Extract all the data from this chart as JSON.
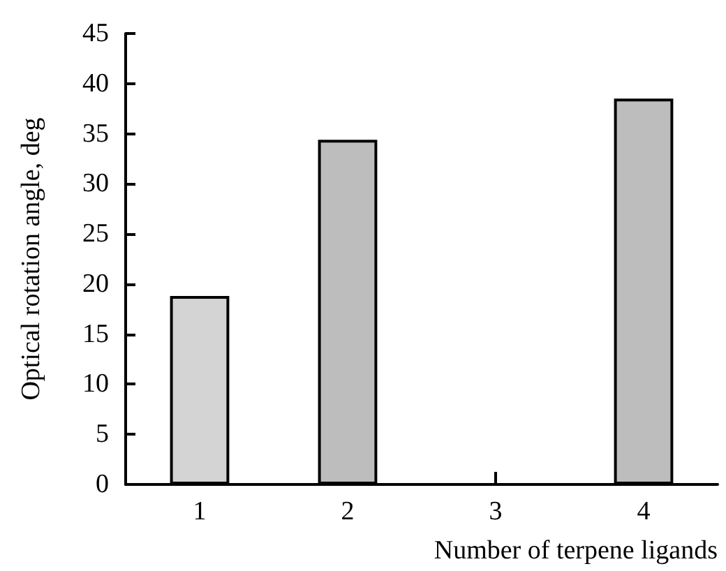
{
  "chart_data": {
    "type": "bar",
    "xlabel": "Number of terpene ligands",
    "ylabel": "Optical rotation angle, deg",
    "categories": [
      "1",
      "2",
      "3",
      "4"
    ],
    "values": [
      18.8,
      34.4,
      null,
      38.5
    ],
    "colors": [
      "#d4d4d4",
      "#bdbdbd",
      "#bdbdbd",
      "#bdbdbd"
    ],
    "ylim": [
      0,
      45
    ],
    "yticks": [
      0,
      5,
      10,
      15,
      20,
      25,
      30,
      35,
      40,
      45
    ],
    "grid": false
  }
}
